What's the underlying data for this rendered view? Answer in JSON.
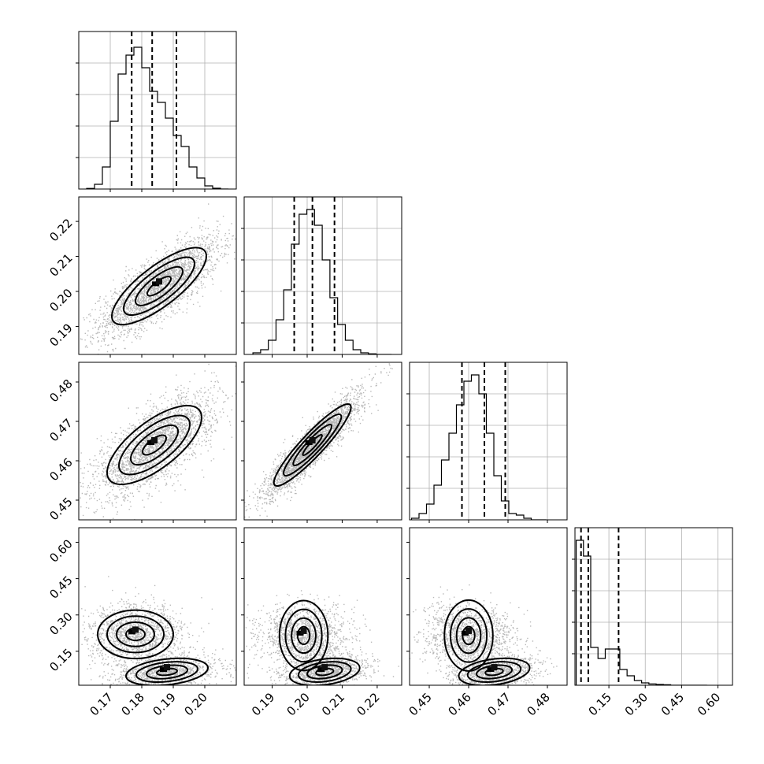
{
  "chart_data": {
    "type": "corner",
    "title": "",
    "parameters": [
      {
        "range": [
          0.16,
          0.21
        ],
        "ticks": [
          0.17,
          0.18,
          0.19,
          0.2
        ],
        "tick_labels": [
          "0.17",
          "0.18",
          "0.19",
          "0.20"
        ],
        "quantiles": [
          0.1768,
          0.1833,
          0.191
        ]
      },
      {
        "range": [
          0.182,
          0.227
        ],
        "ticks": [
          0.19,
          0.2,
          0.21,
          0.22
        ],
        "tick_labels": [
          "0.19",
          "0.20",
          "0.21",
          "0.22"
        ],
        "quantiles": [
          0.1963,
          0.2015,
          0.2078
        ]
      },
      {
        "range": [
          0.445,
          0.485
        ],
        "ticks": [
          0.45,
          0.46,
          0.47,
          0.48
        ],
        "tick_labels": [
          "0.45",
          "0.46",
          "0.47",
          "0.48"
        ],
        "quantiles": [
          0.4583,
          0.464,
          0.4693
        ]
      },
      {
        "range": [
          0.01,
          0.66
        ],
        "ticks": [
          0.15,
          0.3,
          0.45,
          0.6
        ],
        "tick_labels": [
          "0.15",
          "0.30",
          "0.45",
          "0.60"
        ],
        "quantiles": [
          0.035,
          0.065,
          0.19
        ]
      }
    ],
    "histograms": [
      {
        "bin_start": 0.1625,
        "bin_width": 0.0025,
        "counts": [
          0.004,
          0.03,
          0.14,
          0.43,
          0.73,
          0.85,
          0.9,
          0.77,
          0.62,
          0.55,
          0.45,
          0.34,
          0.27,
          0.14,
          0.07,
          0.02,
          0.005,
          0.0
        ]
      },
      {
        "bin_start": 0.1845,
        "bin_width": 0.0022,
        "counts": [
          0.01,
          0.03,
          0.09,
          0.22,
          0.41,
          0.7,
          0.89,
          0.92,
          0.82,
          0.6,
          0.36,
          0.19,
          0.09,
          0.03,
          0.01,
          0.004,
          0.0,
          0.0
        ]
      },
      {
        "bin_start": 0.4455,
        "bin_width": 0.0019,
        "counts": [
          0.01,
          0.04,
          0.1,
          0.22,
          0.38,
          0.55,
          0.73,
          0.88,
          0.92,
          0.8,
          0.55,
          0.28,
          0.12,
          0.04,
          0.03,
          0.01,
          0.0,
          0.0
        ]
      },
      {
        "bin_start": 0.015,
        "bin_width": 0.03,
        "counts": [
          0.92,
          0.82,
          0.24,
          0.17,
          0.23,
          0.23,
          0.1,
          0.06,
          0.03,
          0.015,
          0.008,
          0.005,
          0.003,
          0.0,
          0.0,
          0.0,
          0.0,
          0.0
        ]
      }
    ],
    "pairs": [
      {
        "row": 1,
        "col": 0,
        "blobs": [
          {
            "mean": [
              0.1855,
              0.2015
            ],
            "sd": [
              0.0075,
              0.0055
            ],
            "rho": 0.78,
            "w": 1.0
          }
        ]
      },
      {
        "row": 2,
        "col": 0,
        "blobs": [
          {
            "mean": [
              0.184,
              0.464
            ],
            "sd": [
              0.0075,
              0.005
            ],
            "rho": 0.7,
            "w": 1.0
          }
        ]
      },
      {
        "row": 2,
        "col": 1,
        "blobs": [
          {
            "mean": [
              0.2015,
              0.464
            ],
            "sd": [
              0.0055,
              0.0052
            ],
            "rho": 0.92,
            "w": 1.0
          }
        ]
      },
      {
        "row": 3,
        "col": 0,
        "blobs": [
          {
            "mean": [
              0.178,
              0.22
            ],
            "sd": [
              0.006,
              0.05
            ],
            "rho": 0.0,
            "w": 0.55
          },
          {
            "mean": [
              0.188,
              0.065
            ],
            "sd": [
              0.0065,
              0.028
            ],
            "rho": 0.3,
            "w": 0.45
          }
        ]
      },
      {
        "row": 3,
        "col": 1,
        "blobs": [
          {
            "mean": [
              0.199,
              0.215
            ],
            "sd": [
              0.005,
              0.05
            ],
            "rho": 0.0,
            "w": 0.55
          },
          {
            "mean": [
              0.205,
              0.065
            ],
            "sd": [
              0.005,
              0.028
            ],
            "rho": 0.3,
            "w": 0.45
          }
        ]
      },
      {
        "row": 3,
        "col": 2,
        "blobs": [
          {
            "mean": [
              0.46,
              0.215
            ],
            "sd": [
              0.0045,
              0.05
            ],
            "rho": 0.0,
            "w": 0.55
          },
          {
            "mean": [
              0.4665,
              0.065
            ],
            "sd": [
              0.0045,
              0.028
            ],
            "rho": 0.3,
            "w": 0.45
          }
        ]
      }
    ],
    "contour_levels_sigma": [
      0.5,
      1.0,
      1.5,
      2.0
    ],
    "grid": true,
    "colors": {
      "line": "#000000",
      "grid": "#b0b0b0",
      "points": "#000000"
    }
  }
}
